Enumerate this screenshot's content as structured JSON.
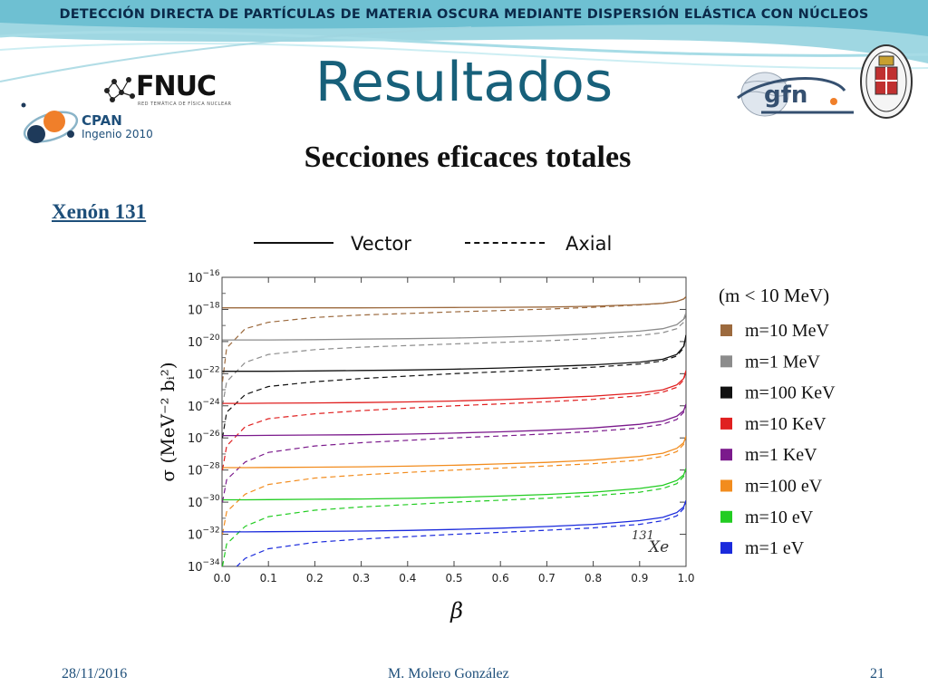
{
  "header": {
    "banner_text": "DETECCIÓN DIRECTA DE PARTÍCULAS DE MATERIA OSCURA MEDIANTE DISPERSIÓN ELÁSTICA CON NÚCLEOS",
    "title": "Resultados",
    "subtitle": "Secciones eficaces totales"
  },
  "logos": {
    "fnuc_text": "FNUC",
    "fnuc_subtext": "RED TEMÁTICA DE FÍSICA NUCLEAR",
    "cpan_text": "CPAN",
    "cpan_subtext": "Ingenio 2010",
    "gfn_text": "gfn"
  },
  "section_label": "Xenón 131",
  "line_legend": {
    "vector_label": "Vector",
    "axial_label": "Axial"
  },
  "chart_data": {
    "type": "line",
    "xlabel": "β",
    "ylabel": "σ (MeV⁻² bᵢ²)",
    "annotation": "131Xe",
    "xlim": [
      0.0,
      1.0
    ],
    "ylim_log10": [
      -34,
      -16
    ],
    "y_scale": "log",
    "x_ticks": [
      "0.0",
      "0.1",
      "0.2",
      "0.3",
      "0.4",
      "0.5",
      "0.6",
      "0.7",
      "0.8",
      "0.9",
      "1.0"
    ],
    "y_ticks_exponent": [
      "-16",
      "-18",
      "-20",
      "-22",
      "-24",
      "-26",
      "-28",
      "-30",
      "-32",
      "-34"
    ],
    "legend_title": "(m < 10 MeV)",
    "legend_position": "right",
    "beta": [
      0.001,
      0.01,
      0.05,
      0.1,
      0.2,
      0.3,
      0.4,
      0.5,
      0.6,
      0.7,
      0.8,
      0.9,
      0.95,
      0.98,
      0.995,
      1.0
    ],
    "series": [
      {
        "name": "m=10 MeV",
        "color": "#9c6a3e",
        "vector_log10": [
          -17.9,
          -17.9,
          -17.9,
          -17.9,
          -17.9,
          -17.9,
          -17.89,
          -17.88,
          -17.87,
          -17.85,
          -17.8,
          -17.7,
          -17.62,
          -17.5,
          -17.35,
          -17.2
        ],
        "axial_log10": [
          -22.5,
          -20.4,
          -19.2,
          -18.8,
          -18.5,
          -18.35,
          -18.25,
          -18.15,
          -18.07,
          -17.98,
          -17.87,
          -17.72,
          -17.62,
          -17.5,
          -17.35,
          -17.2
        ]
      },
      {
        "name": "m=1 MeV",
        "color": "#8c8c8c",
        "vector_log10": [
          -19.9,
          -19.9,
          -19.9,
          -19.9,
          -19.88,
          -19.85,
          -19.82,
          -19.78,
          -19.72,
          -19.64,
          -19.52,
          -19.35,
          -19.2,
          -18.95,
          -18.6,
          -18.2
        ],
        "axial_log10": [
          -24.0,
          -22.5,
          -21.3,
          -20.8,
          -20.5,
          -20.35,
          -20.25,
          -20.15,
          -20.05,
          -19.95,
          -19.82,
          -19.62,
          -19.45,
          -19.2,
          -18.8,
          -18.2
        ]
      },
      {
        "name": "m=100 KeV",
        "color": "#111111",
        "vector_log10": [
          -21.85,
          -21.85,
          -21.85,
          -21.85,
          -21.83,
          -21.8,
          -21.77,
          -21.72,
          -21.65,
          -21.56,
          -21.45,
          -21.28,
          -21.1,
          -20.8,
          -20.3,
          -19.6
        ],
        "axial_log10": [
          -26.0,
          -24.4,
          -23.3,
          -22.8,
          -22.5,
          -22.3,
          -22.15,
          -22.0,
          -21.88,
          -21.75,
          -21.6,
          -21.4,
          -21.2,
          -20.9,
          -20.4,
          -19.6
        ]
      },
      {
        "name": "m=10 KeV",
        "color": "#e02020",
        "vector_log10": [
          -23.85,
          -23.85,
          -23.85,
          -23.84,
          -23.82,
          -23.8,
          -23.76,
          -23.7,
          -23.62,
          -23.52,
          -23.4,
          -23.2,
          -23.0,
          -22.7,
          -22.3,
          -21.8
        ],
        "axial_log10": [
          -28.0,
          -26.5,
          -25.3,
          -24.8,
          -24.5,
          -24.3,
          -24.15,
          -24.0,
          -23.88,
          -23.75,
          -23.6,
          -23.38,
          -23.15,
          -22.85,
          -22.4,
          -21.8
        ]
      },
      {
        "name": "m=1 KeV",
        "color": "#7b1a8c",
        "vector_log10": [
          -25.85,
          -25.85,
          -25.85,
          -25.84,
          -25.82,
          -25.8,
          -25.76,
          -25.7,
          -25.62,
          -25.52,
          -25.38,
          -25.15,
          -24.95,
          -24.65,
          -24.3,
          -23.9
        ],
        "axial_log10": [
          -30.0,
          -28.6,
          -27.5,
          -26.9,
          -26.5,
          -26.3,
          -26.15,
          -26.0,
          -25.88,
          -25.75,
          -25.6,
          -25.38,
          -25.15,
          -24.85,
          -24.4,
          -23.9
        ]
      },
      {
        "name": "m=100 eV",
        "color": "#f28c1e",
        "vector_log10": [
          -27.85,
          -27.85,
          -27.85,
          -27.84,
          -27.82,
          -27.8,
          -27.76,
          -27.7,
          -27.62,
          -27.52,
          -27.38,
          -27.15,
          -26.95,
          -26.65,
          -26.3,
          -25.9
        ],
        "axial_log10": [
          -32.0,
          -30.6,
          -29.5,
          -28.9,
          -28.5,
          -28.3,
          -28.15,
          -28.0,
          -27.88,
          -27.75,
          -27.6,
          -27.38,
          -27.15,
          -26.85,
          -26.4,
          -25.9
        ]
      },
      {
        "name": "m=10 eV",
        "color": "#22cc22",
        "vector_log10": [
          -29.85,
          -29.85,
          -29.85,
          -29.84,
          -29.82,
          -29.8,
          -29.76,
          -29.7,
          -29.62,
          -29.52,
          -29.38,
          -29.15,
          -28.95,
          -28.65,
          -28.3,
          -27.9
        ],
        "axial_log10": [
          -34.0,
          -32.6,
          -31.5,
          -30.9,
          -30.5,
          -30.3,
          -30.15,
          -30.0,
          -29.88,
          -29.75,
          -29.6,
          -29.38,
          -29.15,
          -28.85,
          -28.4,
          -27.9
        ]
      },
      {
        "name": "m=1 eV",
        "color": "#1a2adc",
        "vector_log10": [
          -31.85,
          -31.85,
          -31.85,
          -31.84,
          -31.82,
          -31.8,
          -31.76,
          -31.7,
          -31.62,
          -31.52,
          -31.38,
          -31.15,
          -30.95,
          -30.65,
          -30.3,
          -29.9
        ],
        "axial_log10": [
          -36.0,
          -34.6,
          -33.5,
          -32.9,
          -32.5,
          -32.3,
          -32.15,
          -32.0,
          -31.88,
          -31.75,
          -31.6,
          -31.38,
          -31.15,
          -30.85,
          -30.4,
          -29.9
        ]
      }
    ]
  },
  "footer": {
    "date": "28/11/2016",
    "author": "M. Molero González",
    "page_number": "21"
  }
}
